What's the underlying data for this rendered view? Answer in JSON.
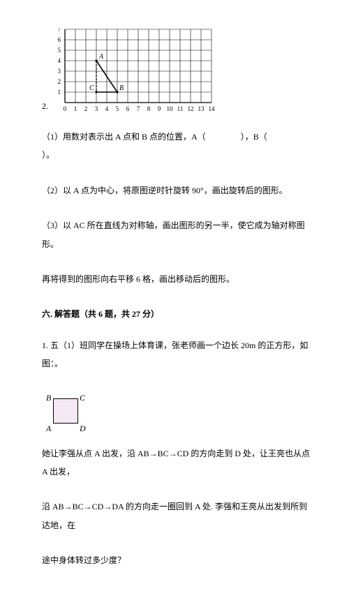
{
  "grid": {
    "prefix": "2.",
    "xMax": 14,
    "yMax": 7,
    "cell": 15,
    "padLeft": 18,
    "padBottom": 16,
    "points": {
      "A": {
        "x": 3,
        "y": 4,
        "label": "A"
      },
      "B": {
        "x": 5,
        "y": 1,
        "label": "B"
      },
      "C": {
        "x": 3,
        "y": 1,
        "label": "C"
      }
    },
    "line_color": "#000000",
    "grid_color": "#000000",
    "dash_color": "#000000"
  },
  "q1": {
    "text_a": "（1）用数对表示出 A 点和 B 点的位置，A（",
    "text_b": "），B（",
    "text_c": "）。"
  },
  "q2": {
    "text": "（2）以 A 点为中心，将原图逆时针旋转 90°，画出旋转后的图形。"
  },
  "q3": {
    "text": "（3）以 AC 所在直线为对称轴，画出图形的另一半，使它成为轴对称图形。"
  },
  "q4": {
    "text": "再将得到的图形向右平移 6 格，画出移动后的图形。"
  },
  "section6": {
    "title": "六. 解答题（共 6 题，共 27 分）",
    "p1a": "1. 五（1）班同学在操场上体育课，张老师画一个边长 20m 的正方形，如",
    "p1b": "图：。",
    "labels": {
      "A": "A",
      "B": "B",
      "C": "C",
      "D": "D"
    },
    "p2": "她让李强从点 A 出发，沿 AB→BC→CD 的方向走到 D 处，让王亮也从点 A 出发，",
    "p3": "沿 AB→BC→CD→DA 的方向走一圈回到 A 处. 李强和王亮从出发到所到达地，在",
    "p4": "途中身体转过多少度？"
  }
}
